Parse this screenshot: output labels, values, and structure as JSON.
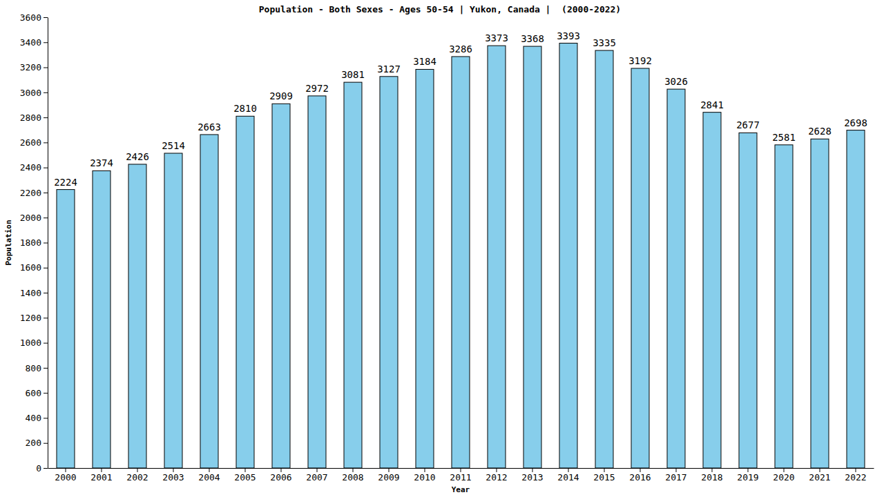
{
  "chart_data": {
    "type": "bar",
    "title": "Population - Both Sexes - Ages 50-54 | Yukon, Canada |  (2000-2022)",
    "x_label": "Year",
    "y_label": "Population",
    "categories": [
      "2000",
      "2001",
      "2002",
      "2003",
      "2004",
      "2005",
      "2006",
      "2007",
      "2008",
      "2009",
      "2010",
      "2011",
      "2012",
      "2013",
      "2014",
      "2015",
      "2016",
      "2017",
      "2018",
      "2019",
      "2020",
      "2021",
      "2022"
    ],
    "values": [
      2224,
      2374,
      2426,
      2514,
      2663,
      2810,
      2909,
      2972,
      3081,
      3127,
      3184,
      3286,
      3373,
      3368,
      3393,
      3335,
      3192,
      3026,
      2841,
      2677,
      2581,
      2628,
      2698
    ],
    "color": "#87ceeb",
    "ylim": [
      0,
      3600
    ],
    "yticks": [
      0,
      200,
      400,
      600,
      800,
      1000,
      1200,
      1400,
      1600,
      1800,
      2000,
      2200,
      2400,
      2600,
      2800,
      3000,
      3200,
      3400,
      3600
    ],
    "grid": false,
    "data_labels": true
  }
}
